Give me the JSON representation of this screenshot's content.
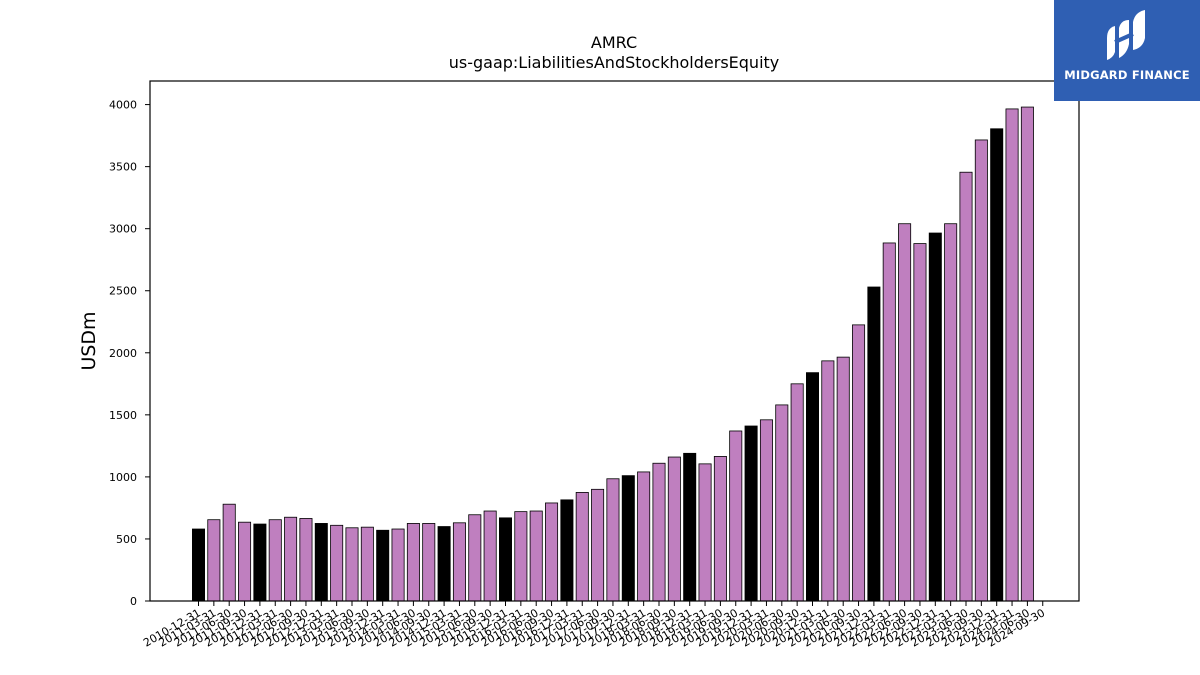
{
  "chart_data": {
    "type": "bar",
    "title": "AMRC",
    "subtitle": "us-gaap:LiabilitiesAndStockholdersEquity",
    "ylabel": "USDm",
    "xlabel": "",
    "ylim": [
      0,
      4190
    ],
    "yticks": [
      0,
      500,
      1000,
      1500,
      2000,
      2500,
      3000,
      3500,
      4000
    ],
    "grid": false,
    "colors": {
      "annual": "#000000",
      "quarterly": "#bf7fbf",
      "edge": "#000000"
    },
    "categories": [
      "2010-12-31",
      "2011-03-31",
      "2011-06-30",
      "2011-09-30",
      "2011-12-31",
      "2012-03-31",
      "2012-06-30",
      "2012-09-30",
      "2012-12-31",
      "2013-03-31",
      "2013-06-30",
      "2013-09-30",
      "2013-12-31",
      "2014-03-31",
      "2014-06-30",
      "2014-09-30",
      "2014-12-31",
      "2015-03-31",
      "2015-06-30",
      "2015-09-30",
      "2015-12-31",
      "2016-03-31",
      "2016-06-30",
      "2016-09-30",
      "2016-12-31",
      "2017-03-31",
      "2017-06-30",
      "2017-09-30",
      "2017-12-31",
      "2018-03-31",
      "2018-06-30",
      "2018-09-30",
      "2018-12-31",
      "2019-03-31",
      "2019-06-30",
      "2019-09-30",
      "2019-12-31",
      "2020-03-31",
      "2020-06-30",
      "2020-09-30",
      "2020-12-31",
      "2021-03-31",
      "2021-06-30",
      "2021-09-30",
      "2021-12-31",
      "2022-03-31",
      "2022-06-30",
      "2022-09-30",
      "2022-12-31",
      "2023-03-31",
      "2023-06-30",
      "2023-09-30",
      "2023-12-31",
      "2024-03-31",
      "2024-06-30",
      "2024-09-30"
    ],
    "values": [
      580,
      655,
      780,
      635,
      620,
      655,
      675,
      665,
      625,
      610,
      590,
      595,
      570,
      580,
      625,
      625,
      600,
      630,
      695,
      725,
      670,
      720,
      725,
      790,
      815,
      875,
      900,
      985,
      1010,
      1040,
      1110,
      1160,
      1190,
      1105,
      1165,
      1370,
      1410,
      1460,
      1580,
      1750,
      1840,
      1935,
      1965,
      2225,
      2530,
      2885,
      3040,
      2880,
      2965,
      3040,
      3455,
      3715,
      3805,
      3965,
      3980,
      null
    ],
    "annual_flags": [
      true,
      false,
      false,
      false,
      true,
      false,
      false,
      false,
      true,
      false,
      false,
      false,
      true,
      false,
      false,
      false,
      true,
      false,
      false,
      false,
      true,
      false,
      false,
      false,
      true,
      false,
      false,
      false,
      true,
      false,
      false,
      false,
      true,
      false,
      false,
      false,
      true,
      false,
      false,
      false,
      true,
      false,
      false,
      false,
      true,
      false,
      false,
      false,
      true,
      false,
      false,
      false,
      true,
      false,
      false,
      false
    ]
  },
  "logo": {
    "text": "MIDGARD FINANCE",
    "icon": "midgard-logo-icon",
    "background": "#2f5fb3"
  }
}
